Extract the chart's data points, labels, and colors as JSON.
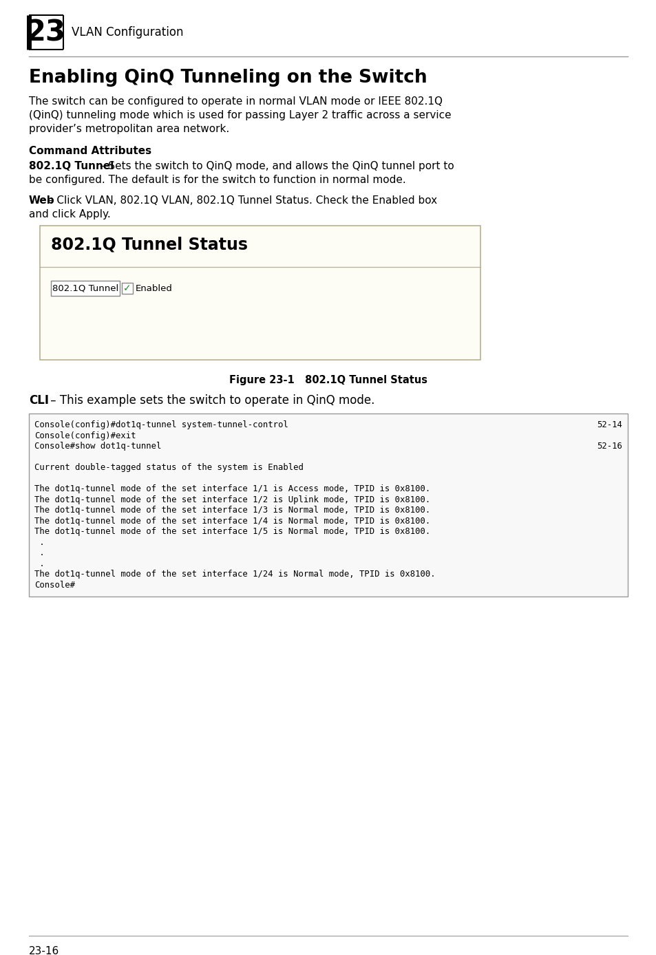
{
  "page_number_box": "23",
  "page_header": "VLAN Configuration",
  "section_title": "Enabling QinQ Tunneling on the Switch",
  "intro_line1": "The switch can be configured to operate in normal VLAN mode or IEEE 802.1Q",
  "intro_line2": "(QinQ) tunneling mode which is used for passing Layer 2 traffic across a service",
  "intro_line3": "provider’s metropolitan area network.",
  "cmd_attr_label": "Command Attributes",
  "cmd_attr_bold": "802.1Q Tunnel",
  "cmd_attr_rest_line1": " – Sets the switch to QinQ mode, and allows the QinQ tunnel port to",
  "cmd_attr_rest_line2": "be configured. The default is for the switch to function in normal mode.",
  "web_bold": "Web",
  "web_rest_line1": " – Click VLAN, 802.1Q VLAN, 802.1Q Tunnel Status. Check the Enabled box",
  "web_rest_line2": "and click Apply.",
  "ui_box_title": "802.1Q Tunnel Status",
  "ui_label": "802.1Q Tunnel",
  "ui_checkbox_label": "Enabled",
  "figure_caption": "Figure 23-1   802.1Q Tunnel Status",
  "cli_bold": "CLI",
  "cli_rest": " – This example sets the switch to operate in QinQ mode.",
  "code_line1": "Console(config)#dot1q-tunnel system-tunnel-control",
  "code_ref1": "52-14",
  "code_line2": "Console(config)#exit",
  "code_line3": "Console#show dot1q-tunnel",
  "code_ref3": "52-16",
  "code_line4": "",
  "code_line5": "Current double-tagged status of the system is Enabled",
  "code_line6": "",
  "code_line7": "The dot1q-tunnel mode of the set interface 1/1 is Access mode, TPID is 0x8100.",
  "code_line8": "The dot1q-tunnel mode of the set interface 1/2 is Uplink mode, TPID is 0x8100.",
  "code_line9": "The dot1q-tunnel mode of the set interface 1/3 is Normal mode, TPID is 0x8100.",
  "code_line10": "The dot1q-tunnel mode of the set interface 1/4 is Normal mode, TPID is 0x8100.",
  "code_line11": "The dot1q-tunnel mode of the set interface 1/5 is Normal mode, TPID is 0x8100.",
  "code_line12": " .",
  "code_line13": " .",
  "code_line14": " .",
  "code_line15": "The dot1q-tunnel mode of the set interface 1/24 is Normal mode, TPID is 0x8100.",
  "code_line16": "Console#",
  "footer_text": "23-16",
  "bg_color": "#ffffff"
}
